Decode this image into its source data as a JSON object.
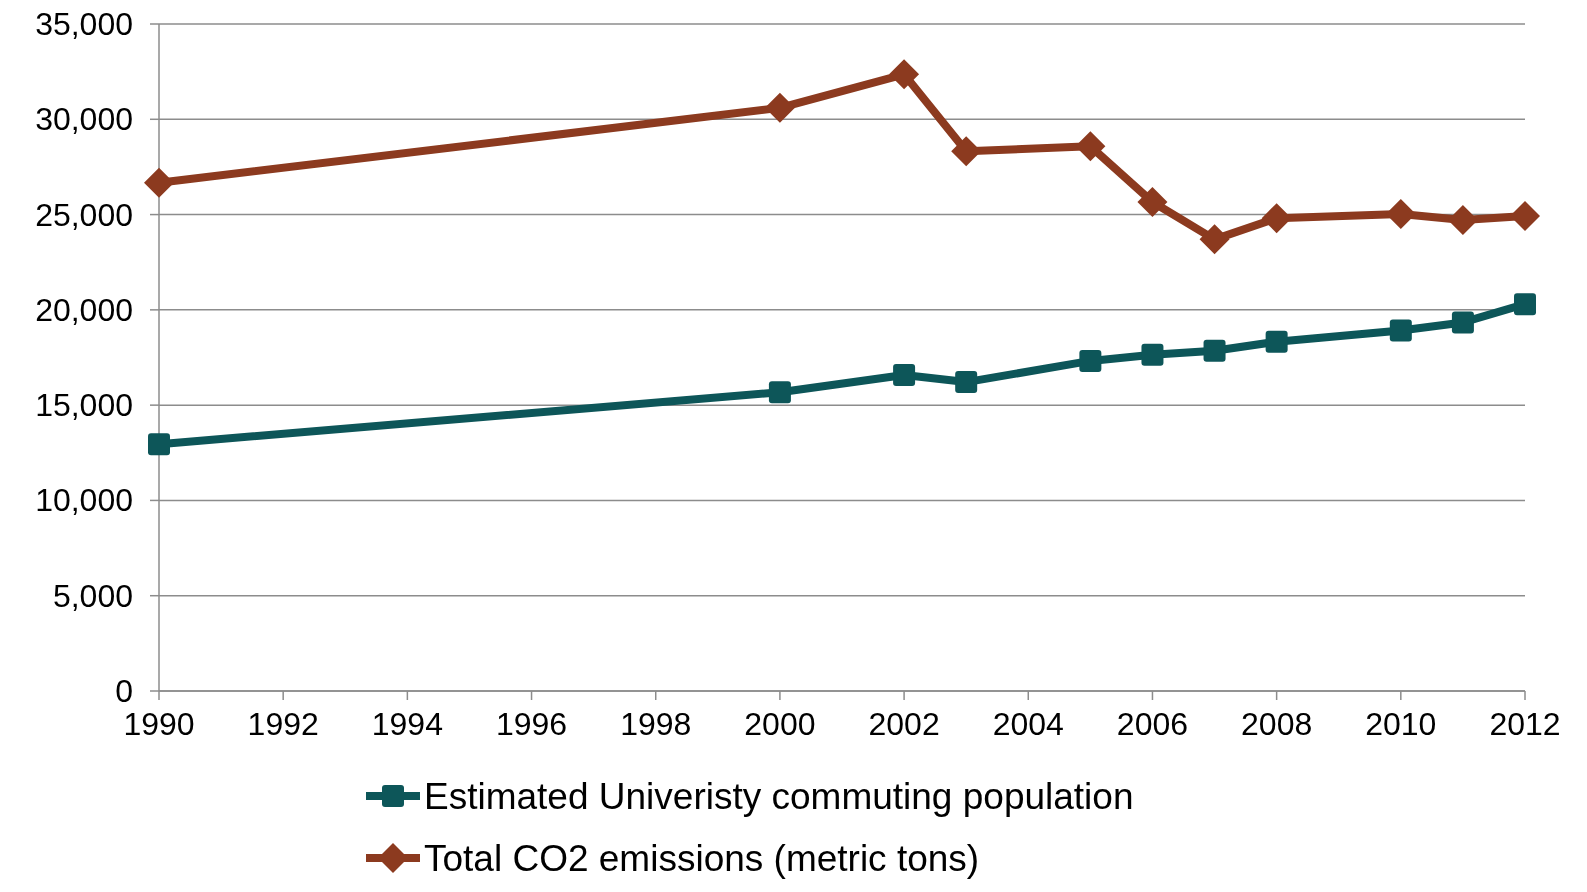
{
  "chart_data": {
    "type": "line",
    "x": [
      1990,
      2000,
      2002,
      2003,
      2005,
      2006,
      2007,
      2008,
      2010,
      2011,
      2012
    ],
    "series": [
      {
        "name": "Estimated Univeristy commuting population",
        "color": "#0d5659",
        "marker": "square",
        "values": [
          12950,
          15680,
          16580,
          16210,
          17320,
          17640,
          17850,
          18330,
          18920,
          19340,
          20300
        ]
      },
      {
        "name": "Total CO2 emissions (metric tons)",
        "color": "#8c3a1f",
        "marker": "diamond",
        "values": [
          26670,
          30600,
          32360,
          28320,
          28590,
          25660,
          23700,
          24810,
          25030,
          24710,
          24920
        ]
      }
    ],
    "xlim": [
      1990,
      2012
    ],
    "xticks": [
      1990,
      1992,
      1994,
      1996,
      1998,
      2000,
      2002,
      2004,
      2006,
      2008,
      2010,
      2012
    ],
    "ylim": [
      0,
      35000
    ],
    "yticks": [
      {
        "value": 0,
        "label": "0"
      },
      {
        "value": 5000,
        "label": "5,000"
      },
      {
        "value": 10000,
        "label": "10,000"
      },
      {
        "value": 15000,
        "label": "15,000"
      },
      {
        "value": 20000,
        "label": "20,000"
      },
      {
        "value": 25000,
        "label": "25,000"
      },
      {
        "value": 30000,
        "label": "30,000"
      },
      {
        "value": 35000,
        "label": "35,000"
      }
    ],
    "grid": "y",
    "legend": "bottom",
    "line_style": "solid"
  }
}
